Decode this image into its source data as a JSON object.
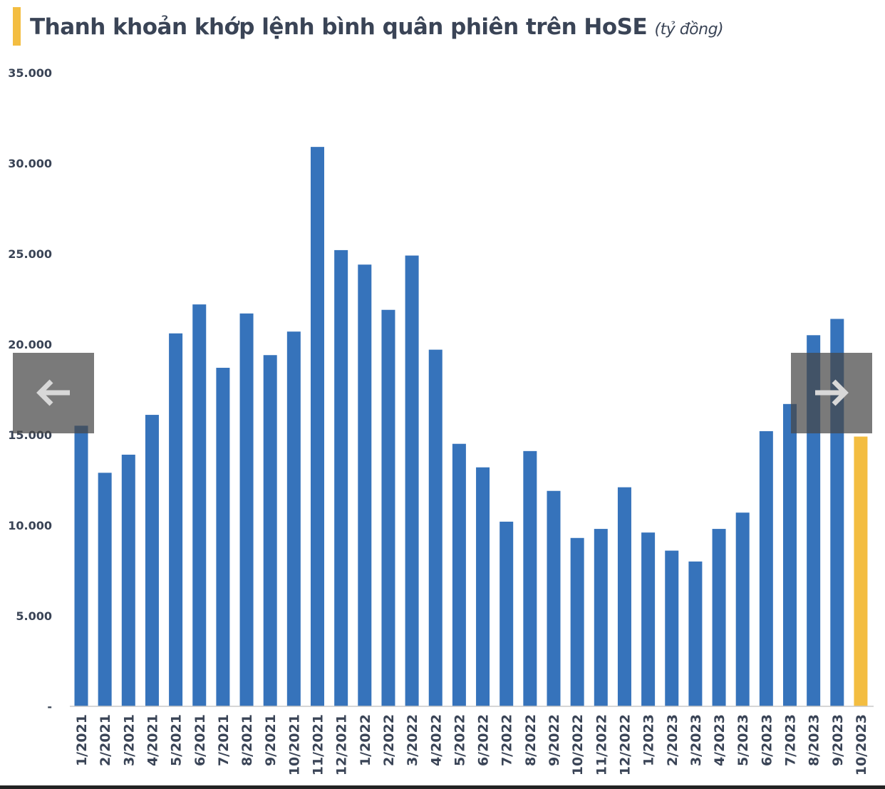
{
  "chart_data": {
    "type": "bar",
    "title": "Thanh khoản khớp lệnh bình quân phiên trên HoSE",
    "unit": "(tỷ đồng)",
    "categories": [
      "1/2021",
      "2/2021",
      "3/2021",
      "4/2021",
      "5/2021",
      "6/2021",
      "7/2021",
      "8/2021",
      "9/2021",
      "10/2021",
      "11/2021",
      "12/2021",
      "1/2022",
      "2/2022",
      "3/2022",
      "4/2022",
      "5/2022",
      "6/2022",
      "7/2022",
      "8/2022",
      "9/2022",
      "10/2022",
      "11/2022",
      "12/2022",
      "1/2023",
      "2/2023",
      "3/2023",
      "4/2023",
      "5/2023",
      "6/2023",
      "7/2023",
      "8/2023",
      "9/2023",
      "10/2023"
    ],
    "values": [
      15500,
      12900,
      13900,
      16100,
      20600,
      22200,
      18700,
      21700,
      19400,
      20700,
      30900,
      25200,
      24400,
      21900,
      24900,
      19700,
      14500,
      13200,
      10200,
      14100,
      11900,
      9300,
      9800,
      12100,
      9600,
      8600,
      8000,
      9800,
      10700,
      15200,
      16700,
      20500,
      21400,
      14900
    ],
    "highlight_index": 33,
    "ylim": [
      0,
      35000
    ],
    "yticks": [
      0,
      5000,
      10000,
      15000,
      20000,
      25000,
      30000,
      35000
    ],
    "ytick_labels": [
      "-",
      "5.000",
      "10.000",
      "15.000",
      "20.000",
      "25.000",
      "30.000",
      "35.000"
    ],
    "grid": false,
    "colors": {
      "bar": "#3673bb",
      "highlight": "#f3bd41",
      "title_accent": "#f3bd41"
    }
  },
  "nav": {
    "prev_icon": "arrow-left-icon",
    "next_icon": "arrow-right-icon"
  }
}
